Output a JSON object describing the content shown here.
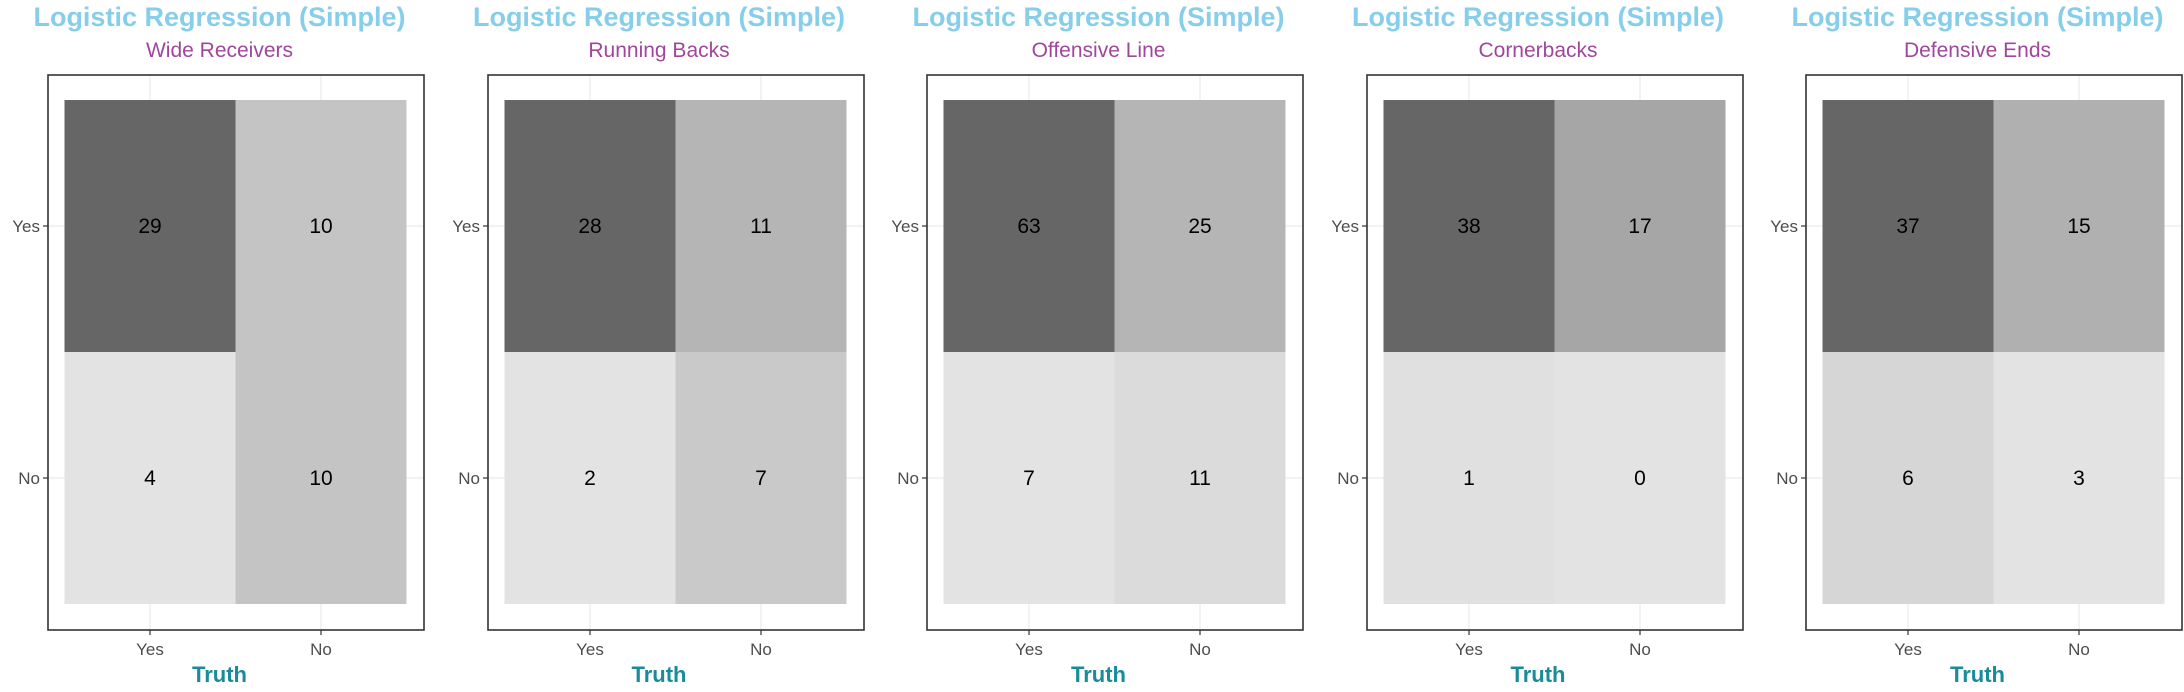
{
  "colors": {
    "title": "#87ceeb",
    "subtitle": "#a0479d",
    "xlabel": "#1a8b9a",
    "tick_label": "#4d4d4d",
    "panel_border": "#333333",
    "grid": "#ebebeb"
  },
  "chart_data": [
    {
      "type": "heatmap",
      "title": "Logistic Regression (Simple)",
      "subtitle": "Wide Receivers",
      "xlabel": "Truth",
      "x_categories": [
        "Yes",
        "No"
      ],
      "y_categories": [
        "Yes",
        "No"
      ],
      "cells": [
        {
          "prediction": "Yes",
          "truth": "Yes",
          "value": 29,
          "fill": "#666666"
        },
        {
          "prediction": "Yes",
          "truth": "No",
          "value": 10,
          "fill": "#c4c4c4"
        },
        {
          "prediction": "No",
          "truth": "Yes",
          "value": 4,
          "fill": "#e3e3e3"
        },
        {
          "prediction": "No",
          "truth": "No",
          "value": 10,
          "fill": "#c4c4c4"
        }
      ]
    },
    {
      "type": "heatmap",
      "title": "Logistic Regression (Simple)",
      "subtitle": "Running Backs",
      "xlabel": "Truth",
      "x_categories": [
        "Yes",
        "No"
      ],
      "y_categories": [
        "Yes",
        "No"
      ],
      "cells": [
        {
          "prediction": "Yes",
          "truth": "Yes",
          "value": 28,
          "fill": "#666666"
        },
        {
          "prediction": "Yes",
          "truth": "No",
          "value": 11,
          "fill": "#b5b5b5"
        },
        {
          "prediction": "No",
          "truth": "Yes",
          "value": 2,
          "fill": "#e3e3e3"
        },
        {
          "prediction": "No",
          "truth": "No",
          "value": 7,
          "fill": "#c9c9c9"
        }
      ]
    },
    {
      "type": "heatmap",
      "title": "Logistic Regression (Simple)",
      "subtitle": "Offensive Line",
      "xlabel": "Truth",
      "x_categories": [
        "Yes",
        "No"
      ],
      "y_categories": [
        "Yes",
        "No"
      ],
      "cells": [
        {
          "prediction": "Yes",
          "truth": "Yes",
          "value": 63,
          "fill": "#666666"
        },
        {
          "prediction": "Yes",
          "truth": "No",
          "value": 25,
          "fill": "#b5b5b5"
        },
        {
          "prediction": "No",
          "truth": "Yes",
          "value": 7,
          "fill": "#e3e3e3"
        },
        {
          "prediction": "No",
          "truth": "No",
          "value": 11,
          "fill": "#dbdbdb"
        }
      ]
    },
    {
      "type": "heatmap",
      "title": "Logistic Regression (Simple)",
      "subtitle": "Cornerbacks",
      "xlabel": "Truth",
      "x_categories": [
        "Yes",
        "No"
      ],
      "y_categories": [
        "Yes",
        "No"
      ],
      "cells": [
        {
          "prediction": "Yes",
          "truth": "Yes",
          "value": 38,
          "fill": "#666666"
        },
        {
          "prediction": "Yes",
          "truth": "No",
          "value": 17,
          "fill": "#a6a6a6"
        },
        {
          "prediction": "No",
          "truth": "Yes",
          "value": 1,
          "fill": "#e0e0e0"
        },
        {
          "prediction": "No",
          "truth": "No",
          "value": 0,
          "fill": "#e3e3e3"
        }
      ]
    },
    {
      "type": "heatmap",
      "title": "Logistic Regression (Simple)",
      "subtitle": "Defensive Ends",
      "xlabel": "Truth",
      "x_categories": [
        "Yes",
        "No"
      ],
      "y_categories": [
        "Yes",
        "No"
      ],
      "cells": [
        {
          "prediction": "Yes",
          "truth": "Yes",
          "value": 37,
          "fill": "#666666"
        },
        {
          "prediction": "Yes",
          "truth": "No",
          "value": 15,
          "fill": "#b0b0b0"
        },
        {
          "prediction": "No",
          "truth": "Yes",
          "value": 6,
          "fill": "#d6d6d6"
        },
        {
          "prediction": "No",
          "truth": "No",
          "value": 3,
          "fill": "#e3e3e3"
        }
      ]
    }
  ]
}
